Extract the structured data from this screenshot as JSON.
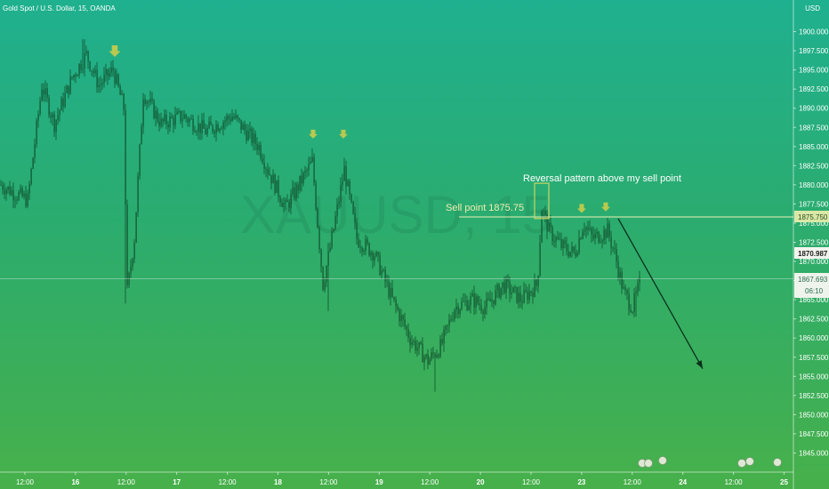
{
  "header": {
    "symbol_line": "Gold Spot / U.S. Dollar, 15, OANDA",
    "currency": "USD"
  },
  "watermark": "XAUUSD, 15",
  "annotations": {
    "reversal_text": "Reversal pattern above my sell point",
    "sell_text": "Sell point 1875.75"
  },
  "price_tags": {
    "sell_level": "1875.750",
    "last_price": "1870.987",
    "crosshair_price": "1867.693",
    "countdown": "06:10"
  },
  "colors": {
    "background_top": "#1fb08f",
    "background_bottom": "#47b04a",
    "candle": "#0f4f2c",
    "annotation_text": "#ffffff",
    "sell_text": "#f0ecb0",
    "marker": "#b9c94f",
    "level_line": "#e8efb0"
  },
  "chart_data": {
    "type": "candlestick",
    "ylim": [
      1842.5,
      1902.5
    ],
    "y_ticks": [
      "1845.000",
      "1847.500",
      "1850.000",
      "1852.500",
      "1855.000",
      "1857.500",
      "1860.000",
      "1862.500",
      "1865.000",
      "1867.500",
      "1870.000",
      "1872.500",
      "1875.000",
      "1877.500",
      "1880.000",
      "1882.500",
      "1885.000",
      "1887.500",
      "1890.000",
      "1892.500",
      "1895.000",
      "1897.500",
      "1900.000"
    ],
    "x_ticks": [
      "12:00",
      "16",
      "12:00",
      "17",
      "12:00",
      "18",
      "12:00",
      "19",
      "12:00",
      "20",
      "12:00",
      "23",
      "12:00",
      "24",
      "12:00",
      "25"
    ],
    "anchor_points": [
      {
        "t": 0,
        "p": 1880
      },
      {
        "t": 14,
        "p": 1879
      },
      {
        "t": 30,
        "p": 1878
      },
      {
        "t": 46,
        "p": 1893
      },
      {
        "t": 60,
        "p": 1888
      },
      {
        "t": 80,
        "p": 1894
      },
      {
        "t": 96,
        "p": 1897
      },
      {
        "t": 110,
        "p": 1893
      },
      {
        "t": 126,
        "p": 1895
      },
      {
        "t": 138,
        "p": 1890
      },
      {
        "t": 142,
        "p": 1866
      },
      {
        "t": 150,
        "p": 1873
      },
      {
        "t": 160,
        "p": 1892
      },
      {
        "t": 180,
        "p": 1888
      },
      {
        "t": 205,
        "p": 1889
      },
      {
        "t": 230,
        "p": 1887
      },
      {
        "t": 260,
        "p": 1889
      },
      {
        "t": 290,
        "p": 1885
      },
      {
        "t": 300,
        "p": 1882
      },
      {
        "t": 320,
        "p": 1877
      },
      {
        "t": 350,
        "p": 1883
      },
      {
        "t": 362,
        "p": 1867
      },
      {
        "t": 372,
        "p": 1873
      },
      {
        "t": 386,
        "p": 1882
      },
      {
        "t": 400,
        "p": 1873
      },
      {
        "t": 420,
        "p": 1871
      },
      {
        "t": 440,
        "p": 1865
      },
      {
        "t": 460,
        "p": 1860
      },
      {
        "t": 480,
        "p": 1857
      },
      {
        "t": 495,
        "p": 1859
      },
      {
        "t": 510,
        "p": 1864
      },
      {
        "t": 530,
        "p": 1865
      },
      {
        "t": 545,
        "p": 1864
      },
      {
        "t": 565,
        "p": 1867
      },
      {
        "t": 585,
        "p": 1865
      },
      {
        "t": 603,
        "p": 1867
      },
      {
        "t": 608,
        "p": 1877
      },
      {
        "t": 616,
        "p": 1874
      },
      {
        "t": 630,
        "p": 1872
      },
      {
        "t": 645,
        "p": 1871
      },
      {
        "t": 655,
        "p": 1875
      },
      {
        "t": 665,
        "p": 1873
      },
      {
        "t": 682,
        "p": 1874
      },
      {
        "t": 690,
        "p": 1871
      },
      {
        "t": 700,
        "p": 1866
      },
      {
        "t": 710,
        "p": 1864
      },
      {
        "t": 718,
        "p": 1867
      }
    ],
    "extremes": [
      {
        "t": 93,
        "type": "high",
        "p": 1899.0
      },
      {
        "t": 140,
        "type": "low",
        "p": 1864.5
      },
      {
        "t": 368,
        "type": "low",
        "p": 1863.5
      },
      {
        "t": 488,
        "type": "low",
        "p": 1853.0
      },
      {
        "t": 714,
        "type": "low",
        "p": 1862.8
      }
    ],
    "sell_level": 1875.75,
    "crosshair_price": 1867.693,
    "reversal_box": {
      "t0": 601,
      "t1": 617,
      "p0": 1875.6,
      "p1": 1880.2
    },
    "markers": [
      {
        "t": 129,
        "p": 1897.3,
        "size": "large"
      },
      {
        "t": 352,
        "p": 1886.5,
        "size": "small"
      },
      {
        "t": 386,
        "p": 1886.5,
        "size": "small"
      },
      {
        "t": 654,
        "p": 1876.8,
        "size": "small"
      },
      {
        "t": 681,
        "p": 1877.0,
        "size": "small"
      }
    ],
    "trend_arrow": {
      "from": {
        "t": 695,
        "p": 1875.6
      },
      "to": {
        "t": 790,
        "p": 1856.0
      }
    }
  }
}
